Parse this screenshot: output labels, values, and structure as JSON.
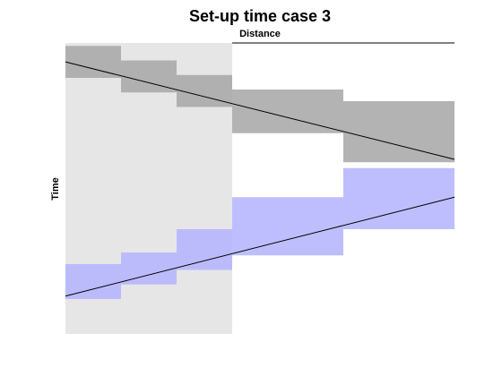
{
  "chart_data": {
    "type": "area",
    "title": "Set-up time case 3",
    "xlabel": "Distance",
    "ylabel": "Time",
    "xlim": [
      0,
      7
    ],
    "ylim": [
      0,
      10
    ],
    "x_axis_location": "top",
    "y_axis_reversed": true,
    "grid": false,
    "shaded_region": {
      "x": [
        0,
        3
      ],
      "color": "#e6e6e6"
    },
    "series": [
      {
        "color": "#a6a6a6",
        "steps": [
          {
            "x": [
              0,
              1
            ],
            "y": [
              0.1,
              1.2
            ]
          },
          {
            "x": [
              1,
              2
            ],
            "y": [
              0.6,
              1.7
            ]
          },
          {
            "x": [
              2,
              3
            ],
            "y": [
              1.1,
              2.2
            ]
          },
          {
            "x": [
              3,
              5
            ],
            "y": [
              1.6,
              3.1
            ]
          },
          {
            "x": [
              5,
              7
            ],
            "y": [
              2.0,
              4.1
            ]
          }
        ],
        "line": {
          "x": [
            0,
            7
          ],
          "y": [
            0.65,
            4.0
          ]
        }
      },
      {
        "color": "#b3b3ff",
        "steps": [
          {
            "x": [
              0,
              1
            ],
            "y": [
              7.6,
              8.8
            ]
          },
          {
            "x": [
              1,
              2
            ],
            "y": [
              7.2,
              8.3
            ]
          },
          {
            "x": [
              2,
              3
            ],
            "y": [
              6.4,
              7.8
            ]
          },
          {
            "x": [
              3,
              5
            ],
            "y": [
              5.3,
              7.3
            ]
          },
          {
            "x": [
              5,
              7
            ],
            "y": [
              4.3,
              6.4
            ]
          }
        ],
        "line": {
          "x": [
            0,
            7
          ],
          "y": [
            8.7,
            5.3
          ]
        }
      }
    ]
  }
}
